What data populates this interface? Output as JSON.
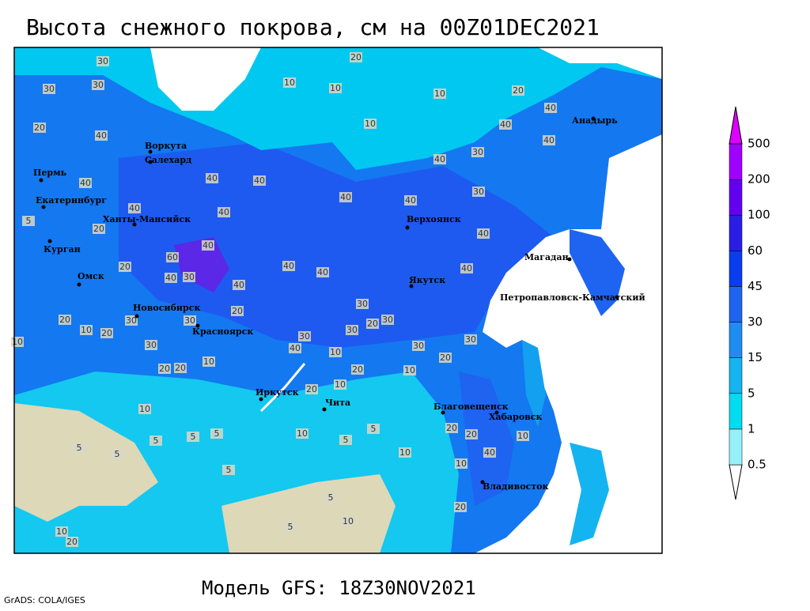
{
  "title": "Высота снежного покрова, см на 00Z01DEC2021",
  "subtitle": "Модель GFS: 18Z30NOV2021",
  "credit": "GrADS: COLA/IGES",
  "colorbar": {
    "levels": [
      0.5,
      1,
      5,
      15,
      30,
      45,
      60,
      100,
      200,
      500
    ],
    "colors": [
      "#ffffff",
      "#96f0fa",
      "#00dcf0",
      "#14b4f0",
      "#1e8cf0",
      "#1e64f0",
      "#0a3cf0",
      "#2a1ee6",
      "#6400f0",
      "#a000ff",
      "#dd00ff"
    ]
  },
  "cities": [
    "Воркута",
    "Салехард",
    "Пермь",
    "Екатеринбург",
    "Ханты-Мансийск",
    "Курган",
    "Омск",
    "Новосибирск",
    "Красноярск",
    "Иркутск",
    "Чита",
    "Благовещенск",
    "Хабаровск",
    "Владивосток",
    "Якутск",
    "Верхоянск",
    "Магадан",
    "Петропавловск-Камчатский",
    "Анадырь"
  ],
  "contour_labels": [
    30,
    30,
    30,
    40,
    20,
    10,
    10,
    10,
    20,
    10,
    20,
    40,
    40,
    40,
    30,
    40,
    30,
    40,
    40,
    40,
    40,
    40,
    40,
    40,
    5,
    60,
    40,
    40,
    30,
    20,
    40,
    40,
    40,
    40,
    40,
    30,
    20,
    30,
    30,
    30,
    20,
    10,
    20,
    10,
    20,
    30,
    30,
    30,
    30,
    40,
    10,
    20,
    10,
    10,
    20,
    10,
    20,
    20,
    20,
    30,
    20,
    20,
    40,
    10,
    10,
    10,
    5,
    5,
    10,
    5,
    5,
    5,
    5,
    5,
    5,
    5,
    10,
    5,
    20,
    20,
    10,
    10,
    20
  ]
}
